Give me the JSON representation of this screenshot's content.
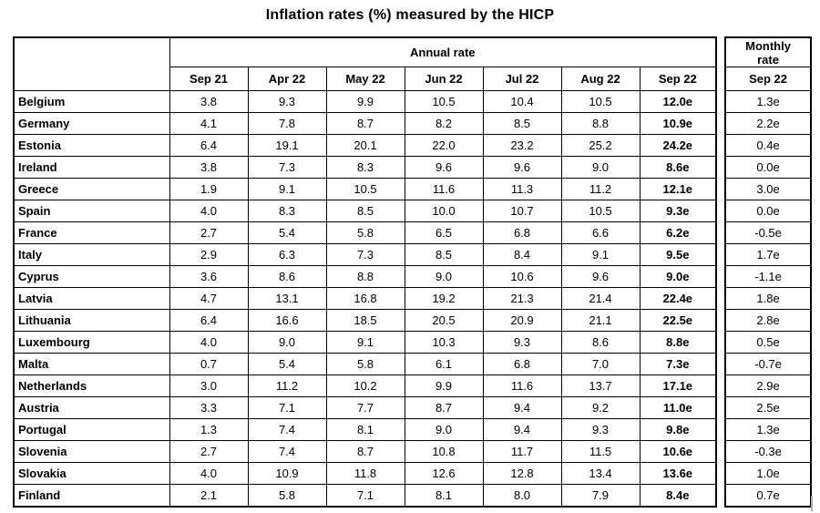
{
  "title": "Inflation rates (%) measured by the HICP",
  "table": {
    "annual_header": "Annual rate",
    "monthly_header": "Monthly\nrate",
    "months": [
      "Sep 21",
      "Apr 22",
      "May 22",
      "Jun 22",
      "Jul 22",
      "Aug 22",
      "Sep 22"
    ],
    "monthly_month": "Sep 22",
    "rows": [
      {
        "country": "Belgium",
        "annual": [
          "3.8",
          "9.3",
          "9.9",
          "10.5",
          "10.4",
          "10.5",
          "12.0e"
        ],
        "monthly": "1.3e"
      },
      {
        "country": "Germany",
        "annual": [
          "4.1",
          "7.8",
          "8.7",
          "8.2",
          "8.5",
          "8.8",
          "10.9e"
        ],
        "monthly": "2.2e"
      },
      {
        "country": "Estonia",
        "annual": [
          "6.4",
          "19.1",
          "20.1",
          "22.0",
          "23.2",
          "25.2",
          "24.2e"
        ],
        "monthly": "0.4e"
      },
      {
        "country": "Ireland",
        "annual": [
          "3.8",
          "7.3",
          "8.3",
          "9.6",
          "9.6",
          "9.0",
          "8.6e"
        ],
        "monthly": "0.0e"
      },
      {
        "country": "Greece",
        "annual": [
          "1.9",
          "9.1",
          "10.5",
          "11.6",
          "11.3",
          "11.2",
          "12.1e"
        ],
        "monthly": "3.0e"
      },
      {
        "country": "Spain",
        "annual": [
          "4.0",
          "8.3",
          "8.5",
          "10.0",
          "10.7",
          "10.5",
          "9.3e"
        ],
        "monthly": "0.0e"
      },
      {
        "country": "France",
        "annual": [
          "2.7",
          "5.4",
          "5.8",
          "6.5",
          "6.8",
          "6.6",
          "6.2e"
        ],
        "monthly": "-0.5e"
      },
      {
        "country": "Italy",
        "annual": [
          "2.9",
          "6.3",
          "7.3",
          "8.5",
          "8.4",
          "9.1",
          "9.5e"
        ],
        "monthly": "1.7e"
      },
      {
        "country": "Cyprus",
        "annual": [
          "3.6",
          "8.6",
          "8.8",
          "9.0",
          "10.6",
          "9.6",
          "9.0e"
        ],
        "monthly": "-1.1e"
      },
      {
        "country": "Latvia",
        "annual": [
          "4.7",
          "13.1",
          "16.8",
          "19.2",
          "21.3",
          "21.4",
          "22.4e"
        ],
        "monthly": "1.8e"
      },
      {
        "country": "Lithuania",
        "annual": [
          "6.4",
          "16.6",
          "18.5",
          "20.5",
          "20.9",
          "21.1",
          "22.5e"
        ],
        "monthly": "2.8e"
      },
      {
        "country": "Luxembourg",
        "annual": [
          "4.0",
          "9.0",
          "9.1",
          "10.3",
          "9.3",
          "8.6",
          "8.8e"
        ],
        "monthly": "0.5e"
      },
      {
        "country": "Malta",
        "annual": [
          "0.7",
          "5.4",
          "5.8",
          "6.1",
          "6.8",
          "7.0",
          "7.3e"
        ],
        "monthly": "-0.7e"
      },
      {
        "country": "Netherlands",
        "annual": [
          "3.0",
          "11.2",
          "10.2",
          "9.9",
          "11.6",
          "13.7",
          "17.1e"
        ],
        "monthly": "2.9e"
      },
      {
        "country": "Austria",
        "annual": [
          "3.3",
          "7.1",
          "7.7",
          "8.7",
          "9.4",
          "9.2",
          "11.0e"
        ],
        "monthly": "2.5e"
      },
      {
        "country": "Portugal",
        "annual": [
          "1.3",
          "7.4",
          "8.1",
          "9.0",
          "9.4",
          "9.3",
          "9.8e"
        ],
        "monthly": "1.3e"
      },
      {
        "country": "Slovenia",
        "annual": [
          "2.7",
          "7.4",
          "8.7",
          "10.8",
          "11.7",
          "11.5",
          "10.6e"
        ],
        "monthly": "-0.3e"
      },
      {
        "country": "Slovakia",
        "annual": [
          "4.0",
          "10.9",
          "11.8",
          "12.6",
          "12.8",
          "13.4",
          "13.6e"
        ],
        "monthly": "1.0e"
      },
      {
        "country": "Finland",
        "annual": [
          "2.1",
          "5.8",
          "7.1",
          "8.1",
          "8.0",
          "7.9",
          "8.4e"
        ],
        "monthly": "0.7e"
      }
    ]
  },
  "colors": {
    "text": "#000000",
    "border": "#000000",
    "background": "#ffffff"
  }
}
